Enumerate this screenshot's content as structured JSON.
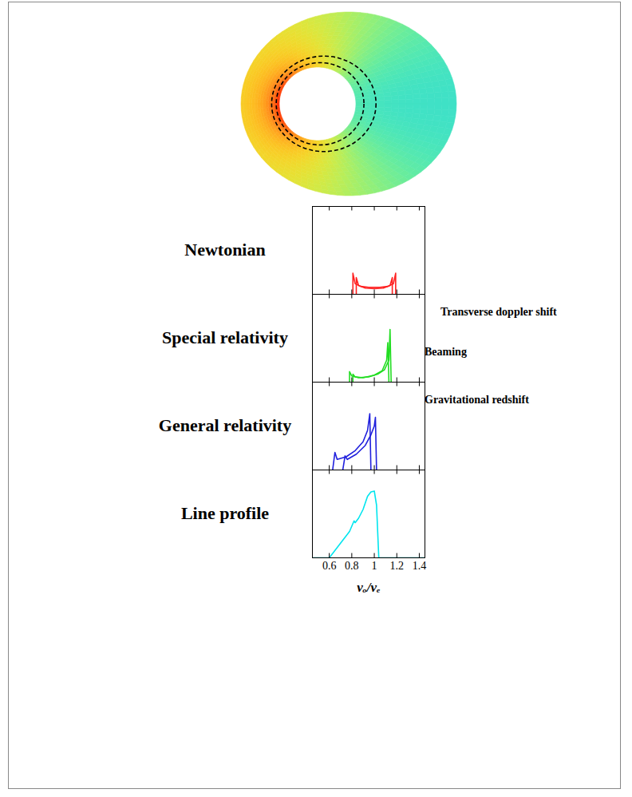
{
  "chart_data": [
    {
      "type": "line",
      "title": "Newtonian",
      "xlim": [
        0.45,
        1.45
      ],
      "xticks": [
        0.6,
        0.8,
        1,
        1.2,
        1.4
      ],
      "ylim": [
        0,
        1
      ],
      "yticks": [],
      "tick_labels": false,
      "series": [
        {
          "color": "#ff2020",
          "x": [
            0.81,
            0.81,
            0.83,
            0.88,
            0.95,
            1.0,
            1.05,
            1.12,
            1.17,
            1.19,
            1.19
          ],
          "values": [
            0,
            0.24,
            0.12,
            0.09,
            0.08,
            0.08,
            0.08,
            0.09,
            0.12,
            0.24,
            0
          ]
        },
        {
          "color": "#ff2020",
          "x": [
            0.84,
            0.84,
            0.86,
            0.92,
            1.0,
            1.08,
            1.14,
            1.16,
            1.16
          ],
          "values": [
            0,
            0.19,
            0.1,
            0.07,
            0.065,
            0.07,
            0.1,
            0.19,
            0
          ]
        }
      ]
    },
    {
      "type": "line",
      "title": "Special relativity",
      "annotations": [
        "Transverse doppler shift",
        "Beaming"
      ],
      "xlim": [
        0.45,
        1.45
      ],
      "xticks": [
        0.6,
        0.8,
        1,
        1.2,
        1.4
      ],
      "ylim": [
        0,
        1
      ],
      "yticks": [],
      "tick_labels": false,
      "series": [
        {
          "color": "#22dd22",
          "x": [
            0.78,
            0.78,
            0.8,
            0.86,
            0.95,
            1.03,
            1.09,
            1.13,
            1.14,
            1.15
          ],
          "values": [
            0,
            0.12,
            0.07,
            0.05,
            0.06,
            0.09,
            0.14,
            0.25,
            0.6,
            0
          ]
        },
        {
          "color": "#22dd22",
          "x": [
            0.81,
            0.81,
            0.83,
            0.9,
            1.0,
            1.07,
            1.11,
            1.12,
            1.13
          ],
          "values": [
            0,
            0.09,
            0.06,
            0.05,
            0.08,
            0.13,
            0.25,
            0.45,
            0
          ]
        }
      ]
    },
    {
      "type": "line",
      "title": "General relativity",
      "annotations": [
        "Gravitational redshift"
      ],
      "xlim": [
        0.45,
        1.45
      ],
      "xticks": [
        0.6,
        0.8,
        1,
        1.2,
        1.4
      ],
      "ylim": [
        0,
        1
      ],
      "yticks": [],
      "tick_labels": false,
      "series": [
        {
          "color": "#2020dd",
          "x": [
            0.63,
            0.65,
            0.67,
            0.75,
            0.83,
            0.9,
            0.94,
            0.96,
            0.97
          ],
          "values": [
            0,
            0.2,
            0.12,
            0.15,
            0.22,
            0.32,
            0.45,
            0.64,
            0
          ]
        },
        {
          "color": "#2020dd",
          "x": [
            0.72,
            0.74,
            0.76,
            0.84,
            0.92,
            0.97,
            1.0,
            1.01,
            1.02
          ],
          "values": [
            0,
            0.16,
            0.12,
            0.18,
            0.28,
            0.4,
            0.5,
            0.6,
            0
          ]
        }
      ]
    },
    {
      "type": "line",
      "title": "Line profile",
      "x_label": "νₒ/νₑ",
      "xlim": [
        0.45,
        1.45
      ],
      "xticks": [
        0.6,
        0.8,
        1,
        1.2,
        1.4
      ],
      "ylim": [
        0,
        1
      ],
      "yticks": [],
      "tick_labels": "x",
      "series": [
        {
          "color": "#00e5ee",
          "x": [
            0.45,
            0.6,
            0.66,
            0.72,
            0.78,
            0.82,
            0.83,
            0.86,
            0.9,
            0.94,
            0.97,
            1.0,
            1.02,
            1.04,
            1.45
          ],
          "values": [
            0,
            0,
            0.1,
            0.2,
            0.3,
            0.42,
            0.4,
            0.45,
            0.55,
            0.7,
            0.75,
            0.76,
            0.6,
            0,
            0
          ]
        }
      ]
    }
  ]
}
